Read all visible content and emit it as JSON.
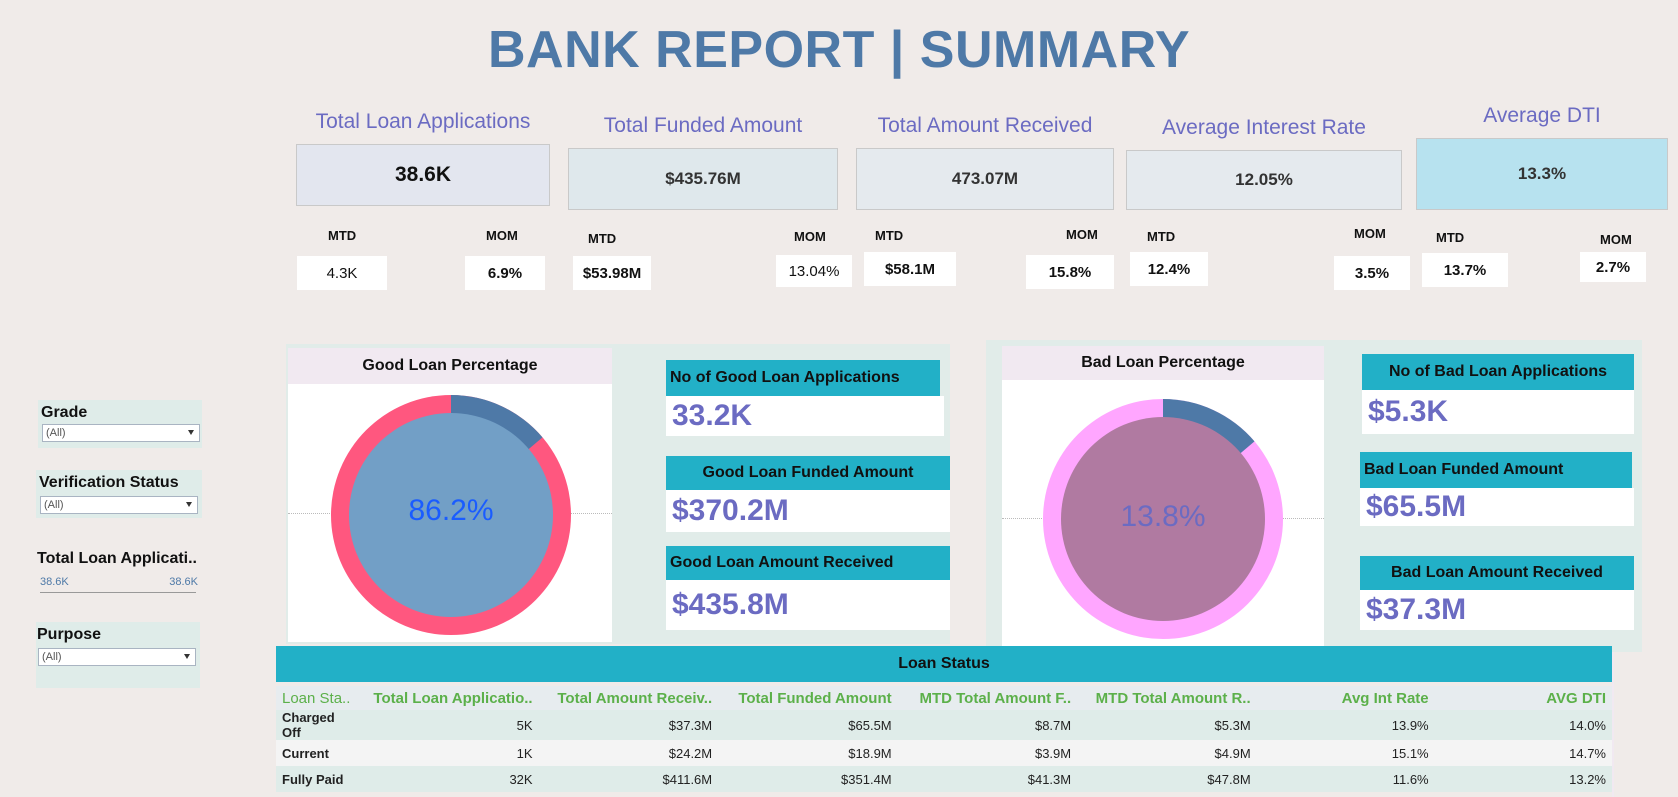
{
  "title": "BANK REPORT | SUMMARY",
  "kpis": [
    {
      "title": "Total Loan Applications",
      "value": "38.6K",
      "mtd_label": "MTD",
      "mtd": "4.3K",
      "mom_label": "MOM",
      "mom": "6.9%"
    },
    {
      "title": "Total Funded Amount",
      "value": "$435.76M",
      "mtd_label": "MTD",
      "mtd": "$53.98M",
      "mom_label": "MOM",
      "mom": "13.04%"
    },
    {
      "title": "Total Amount Received",
      "value": "473.07M",
      "mtd_label": "MTD",
      "mtd": "$58.1M",
      "mom_label": "MOM",
      "mom": "15.8%"
    },
    {
      "title": "Average Interest Rate",
      "value": "12.05%",
      "mtd_label": "MTD",
      "mtd": "12.4%",
      "mom_label": "MOM",
      "mom": "3.5%"
    },
    {
      "title": "Average DTI",
      "value": "13.3%",
      "mtd_label": "MTD",
      "mtd": "13.7%",
      "mom_label": "MOM",
      "mom": "2.7%"
    }
  ],
  "filters": {
    "grade": {
      "label": "Grade",
      "value": "(All)"
    },
    "verification": {
      "label": "Verification Status",
      "value": "(All)"
    },
    "total_apps": {
      "label": "Total Loan Applicati..",
      "min": "38.6K",
      "max": "38.6K"
    },
    "purpose": {
      "label": "Purpose",
      "value": "(All)"
    }
  },
  "good": {
    "title": "Good Loan Percentage",
    "percent_label": "86.2%",
    "percent": 86.2,
    "cards": [
      {
        "label": "No of Good Loan Applications",
        "value": "33.2K"
      },
      {
        "label": "Good Loan Funded Amount",
        "value": "$370.2M"
      },
      {
        "label": "Good Loan Amount Received",
        "value": "$435.8M"
      }
    ]
  },
  "bad": {
    "title": "Bad Loan Percentage",
    "percent_label": "13.8%",
    "percent": 13.8,
    "cards": [
      {
        "label": "No of Bad Loan Applications",
        "value": "$5.3K"
      },
      {
        "label": "Bad Loan Funded Amount",
        "value": "$65.5M"
      },
      {
        "label": "Bad Loan Amount Received",
        "value": "$37.3M"
      }
    ]
  },
  "loan_status": {
    "title": "Loan Status",
    "columns": [
      "Loan Sta..",
      "Total Loan Applicatio..",
      "Total Amount Receiv..",
      "Total Funded Amount",
      "MTD Total Amount F..",
      "MTD Total Amount R..",
      "Avg Int Rate",
      "AVG DTI"
    ],
    "rows": [
      [
        "Charged Off",
        "5K",
        "$37.3M",
        "$65.5M",
        "$8.7M",
        "$5.3M",
        "13.9%",
        "14.0%"
      ],
      [
        "Current",
        "1K",
        "$24.2M",
        "$18.9M",
        "$3.9M",
        "$4.9M",
        "15.1%",
        "14.7%"
      ],
      [
        "Fully Paid",
        "32K",
        "$411.6M",
        "$351.4M",
        "$41.3M",
        "$47.8M",
        "11.6%",
        "13.2%"
      ]
    ]
  },
  "colors": {
    "title": "#4e79a7",
    "accent": "#6b6bc2",
    "teal": "#22b0c7",
    "good_ring": "#ff577f",
    "good_center": "#729fc6",
    "bad_ring": "#ffa6ff",
    "bad_center": "#b07aa1",
    "slice": "#4e79a7"
  }
}
